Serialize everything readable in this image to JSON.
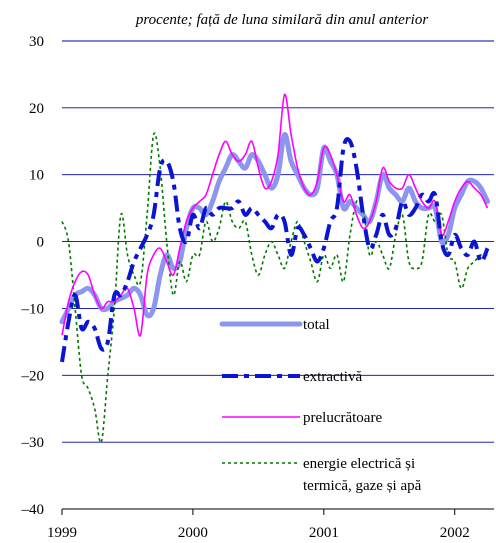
{
  "subtitle": "procente; față de luna similară din anul anterior",
  "chart_data": {
    "type": "line",
    "subtitle": "procente; față de luna similară din anul anterior",
    "xlim": [
      1999.0,
      2002.3
    ],
    "x_ticks": [
      1999,
      2000,
      2001,
      2002
    ],
    "x_tick_labels": [
      "1999",
      "2000",
      "2001",
      "2002"
    ],
    "ylim": [
      -40,
      30
    ],
    "y_ticks": [
      30,
      20,
      10,
      0,
      -10,
      -20,
      -30,
      -40
    ],
    "y_tick_labels": [
      "30",
      "20",
      "10",
      "0",
      "–10",
      "–20",
      "–30",
      "–40"
    ],
    "grid": "horizontal",
    "legend_position": "bottom-right",
    "colors": {
      "total": "#8c96ee",
      "extractiva": "#0a14d2",
      "prelucratoare": "#ff00ff",
      "energie": "#007800",
      "gridline": "#0000aa"
    },
    "series": [
      {
        "name": "total",
        "key": "total",
        "style": "thick",
        "x": [
          1999.0,
          1999.05,
          1999.1,
          1999.15,
          1999.2,
          1999.25,
          1999.3,
          1999.35,
          1999.4,
          1999.45,
          1999.5,
          1999.55,
          1999.6,
          1999.65,
          1999.7,
          1999.75,
          1999.8,
          1999.85,
          1999.9,
          1999.95,
          2000.0,
          2000.05,
          2000.1,
          2000.15,
          2000.2,
          2000.25,
          2000.3,
          2000.35,
          2000.4,
          2000.45,
          2000.5,
          2000.55,
          2000.6,
          2000.65,
          2000.7,
          2000.75,
          2000.8,
          2000.85,
          2000.9,
          2000.95,
          2001.0,
          2001.05,
          2001.1,
          2001.15,
          2001.2,
          2001.25,
          2001.3,
          2001.35,
          2001.4,
          2001.45,
          2001.5,
          2001.55,
          2001.6,
          2001.65,
          2001.7,
          2001.75,
          2001.8,
          2001.85,
          2001.9,
          2001.95,
          2002.0,
          2002.05,
          2002.1,
          2002.15,
          2002.2,
          2002.25
        ],
        "values": [
          -12,
          -10,
          -8,
          -7.5,
          -7,
          -8,
          -10,
          -10,
          -9,
          -8.5,
          -8,
          -7,
          -8,
          -11,
          -10,
          -5,
          -2,
          -4,
          -3,
          2,
          5,
          5,
          4,
          6,
          9,
          11,
          13,
          12,
          11,
          13,
          12,
          10,
          8,
          10,
          16,
          12,
          10,
          8,
          7,
          8,
          14,
          12,
          10,
          5,
          6,
          5,
          4,
          3,
          6,
          10,
          8,
          7,
          6,
          8,
          6,
          5,
          5,
          5,
          0,
          1,
          5,
          7,
          9,
          9,
          8,
          6
        ]
      },
      {
        "name": "extractivă",
        "key": "extractiva",
        "style": "dashdot",
        "x": [
          1999.0,
          1999.05,
          1999.1,
          1999.15,
          1999.2,
          1999.25,
          1999.3,
          1999.35,
          1999.4,
          1999.45,
          1999.5,
          1999.55,
          1999.6,
          1999.65,
          1999.7,
          1999.75,
          1999.8,
          1999.85,
          1999.9,
          1999.95,
          2000.0,
          2000.05,
          2000.1,
          2000.15,
          2000.2,
          2000.25,
          2000.3,
          2000.35,
          2000.4,
          2000.45,
          2000.5,
          2000.55,
          2000.6,
          2000.65,
          2000.7,
          2000.75,
          2000.8,
          2000.85,
          2000.9,
          2000.95,
          2001.0,
          2001.05,
          2001.1,
          2001.15,
          2001.2,
          2001.25,
          2001.3,
          2001.35,
          2001.4,
          2001.45,
          2001.5,
          2001.55,
          2001.6,
          2001.65,
          2001.7,
          2001.75,
          2001.8,
          2001.85,
          2001.9,
          2001.95,
          2002.0,
          2002.05,
          2002.1,
          2002.15,
          2002.2,
          2002.25
        ],
        "values": [
          -18,
          -12,
          -8,
          -13,
          -12,
          -13,
          -16,
          -15,
          -8,
          -8,
          -6,
          -3,
          -1,
          1,
          4,
          11,
          12,
          9,
          2,
          0,
          4,
          2,
          5,
          4,
          5,
          5,
          5,
          6,
          4,
          5,
          4,
          3,
          2,
          4,
          3,
          -2,
          2,
          1,
          -1,
          -3,
          -1,
          3,
          5,
          14,
          15,
          11,
          4,
          -1,
          1,
          4,
          1,
          2,
          6,
          4,
          5,
          7,
          6,
          7,
          0,
          -2,
          1,
          -1,
          -2,
          0,
          -3,
          -1
        ]
      },
      {
        "name": "prelucrătoare",
        "key": "prelucratoare",
        "style": "thin",
        "x": [
          1999.0,
          1999.05,
          1999.1,
          1999.15,
          1999.2,
          1999.25,
          1999.3,
          1999.35,
          1999.4,
          1999.45,
          1999.5,
          1999.55,
          1999.6,
          1999.65,
          1999.7,
          1999.75,
          1999.8,
          1999.85,
          1999.9,
          1999.95,
          2000.0,
          2000.05,
          2000.1,
          2000.15,
          2000.2,
          2000.25,
          2000.3,
          2000.35,
          2000.4,
          2000.45,
          2000.5,
          2000.55,
          2000.6,
          2000.65,
          2000.7,
          2000.75,
          2000.8,
          2000.85,
          2000.9,
          2000.95,
          2001.0,
          2001.05,
          2001.1,
          2001.15,
          2001.2,
          2001.25,
          2001.3,
          2001.35,
          2001.4,
          2001.45,
          2001.5,
          2001.55,
          2001.6,
          2001.65,
          2001.7,
          2001.75,
          2001.8,
          2001.85,
          2001.9,
          2001.95,
          2002.0,
          2002.05,
          2002.1,
          2002.15,
          2002.2,
          2002.25
        ],
        "values": [
          -14,
          -9,
          -6,
          -4.5,
          -5,
          -8,
          -10,
          -9,
          -9,
          -8,
          -7,
          -10,
          -14,
          -5,
          -2,
          -1,
          -3,
          -5,
          -1,
          3,
          5,
          6,
          7,
          10,
          13,
          15,
          13,
          12,
          13,
          15,
          11,
          8,
          9,
          13,
          22,
          16,
          11,
          8,
          7,
          9,
          14,
          13,
          10,
          6,
          7,
          4,
          2,
          3,
          6,
          11,
          9,
          8,
          8,
          10,
          8,
          6,
          5,
          6,
          1,
          3,
          6,
          8,
          9,
          8,
          7,
          5
        ]
      },
      {
        "name": "energie electrică și termică, gaze și apă",
        "key": "energie",
        "style": "dotted",
        "x": [
          1999.0,
          1999.05,
          1999.1,
          1999.15,
          1999.2,
          1999.25,
          1999.3,
          1999.35,
          1999.4,
          1999.45,
          1999.5,
          1999.55,
          1999.6,
          1999.65,
          1999.7,
          1999.75,
          1999.8,
          1999.85,
          1999.9,
          1999.95,
          2000.0,
          2000.05,
          2000.1,
          2000.15,
          2000.2,
          2000.25,
          2000.3,
          2000.35,
          2000.4,
          2000.45,
          2000.5,
          2000.55,
          2000.6,
          2000.65,
          2000.7,
          2000.75,
          2000.8,
          2000.85,
          2000.9,
          2000.95,
          2001.0,
          2001.05,
          2001.1,
          2001.15,
          2001.2,
          2001.25,
          2001.3,
          2001.35,
          2001.4,
          2001.45,
          2001.5,
          2001.55,
          2001.6,
          2001.65,
          2001.7,
          2001.75,
          2001.8,
          2001.85,
          2001.9,
          2001.95,
          2002.0,
          2002.05,
          2002.1,
          2002.15,
          2002.2,
          2002.25
        ],
        "values": [
          3,
          0,
          -10,
          -20,
          -22,
          -25,
          -30,
          -20,
          -10,
          4,
          -2,
          -5,
          -6,
          4,
          16,
          11,
          0,
          -8,
          -3,
          -6,
          -2,
          -2,
          3,
          0,
          2,
          6,
          3,
          2,
          3,
          -2,
          -5,
          -2,
          0,
          -2,
          -4,
          0,
          3,
          0,
          -3,
          -6,
          -2,
          -4,
          -2,
          -6,
          1,
          6,
          5,
          -2,
          0,
          -2,
          -4,
          1,
          4,
          -3,
          -4,
          -3,
          4,
          3,
          4,
          -2,
          -3,
          -7,
          -4,
          -3,
          -2,
          -2
        ]
      }
    ],
    "legend": [
      {
        "key": "total",
        "label": "total"
      },
      {
        "key": "extractiva",
        "label": "extractivă"
      },
      {
        "key": "prelucratoare",
        "label": "prelucrătoare"
      },
      {
        "key": "energie",
        "label_lines": [
          "energie electrică și",
          "termică, gaze și apă"
        ]
      }
    ]
  }
}
